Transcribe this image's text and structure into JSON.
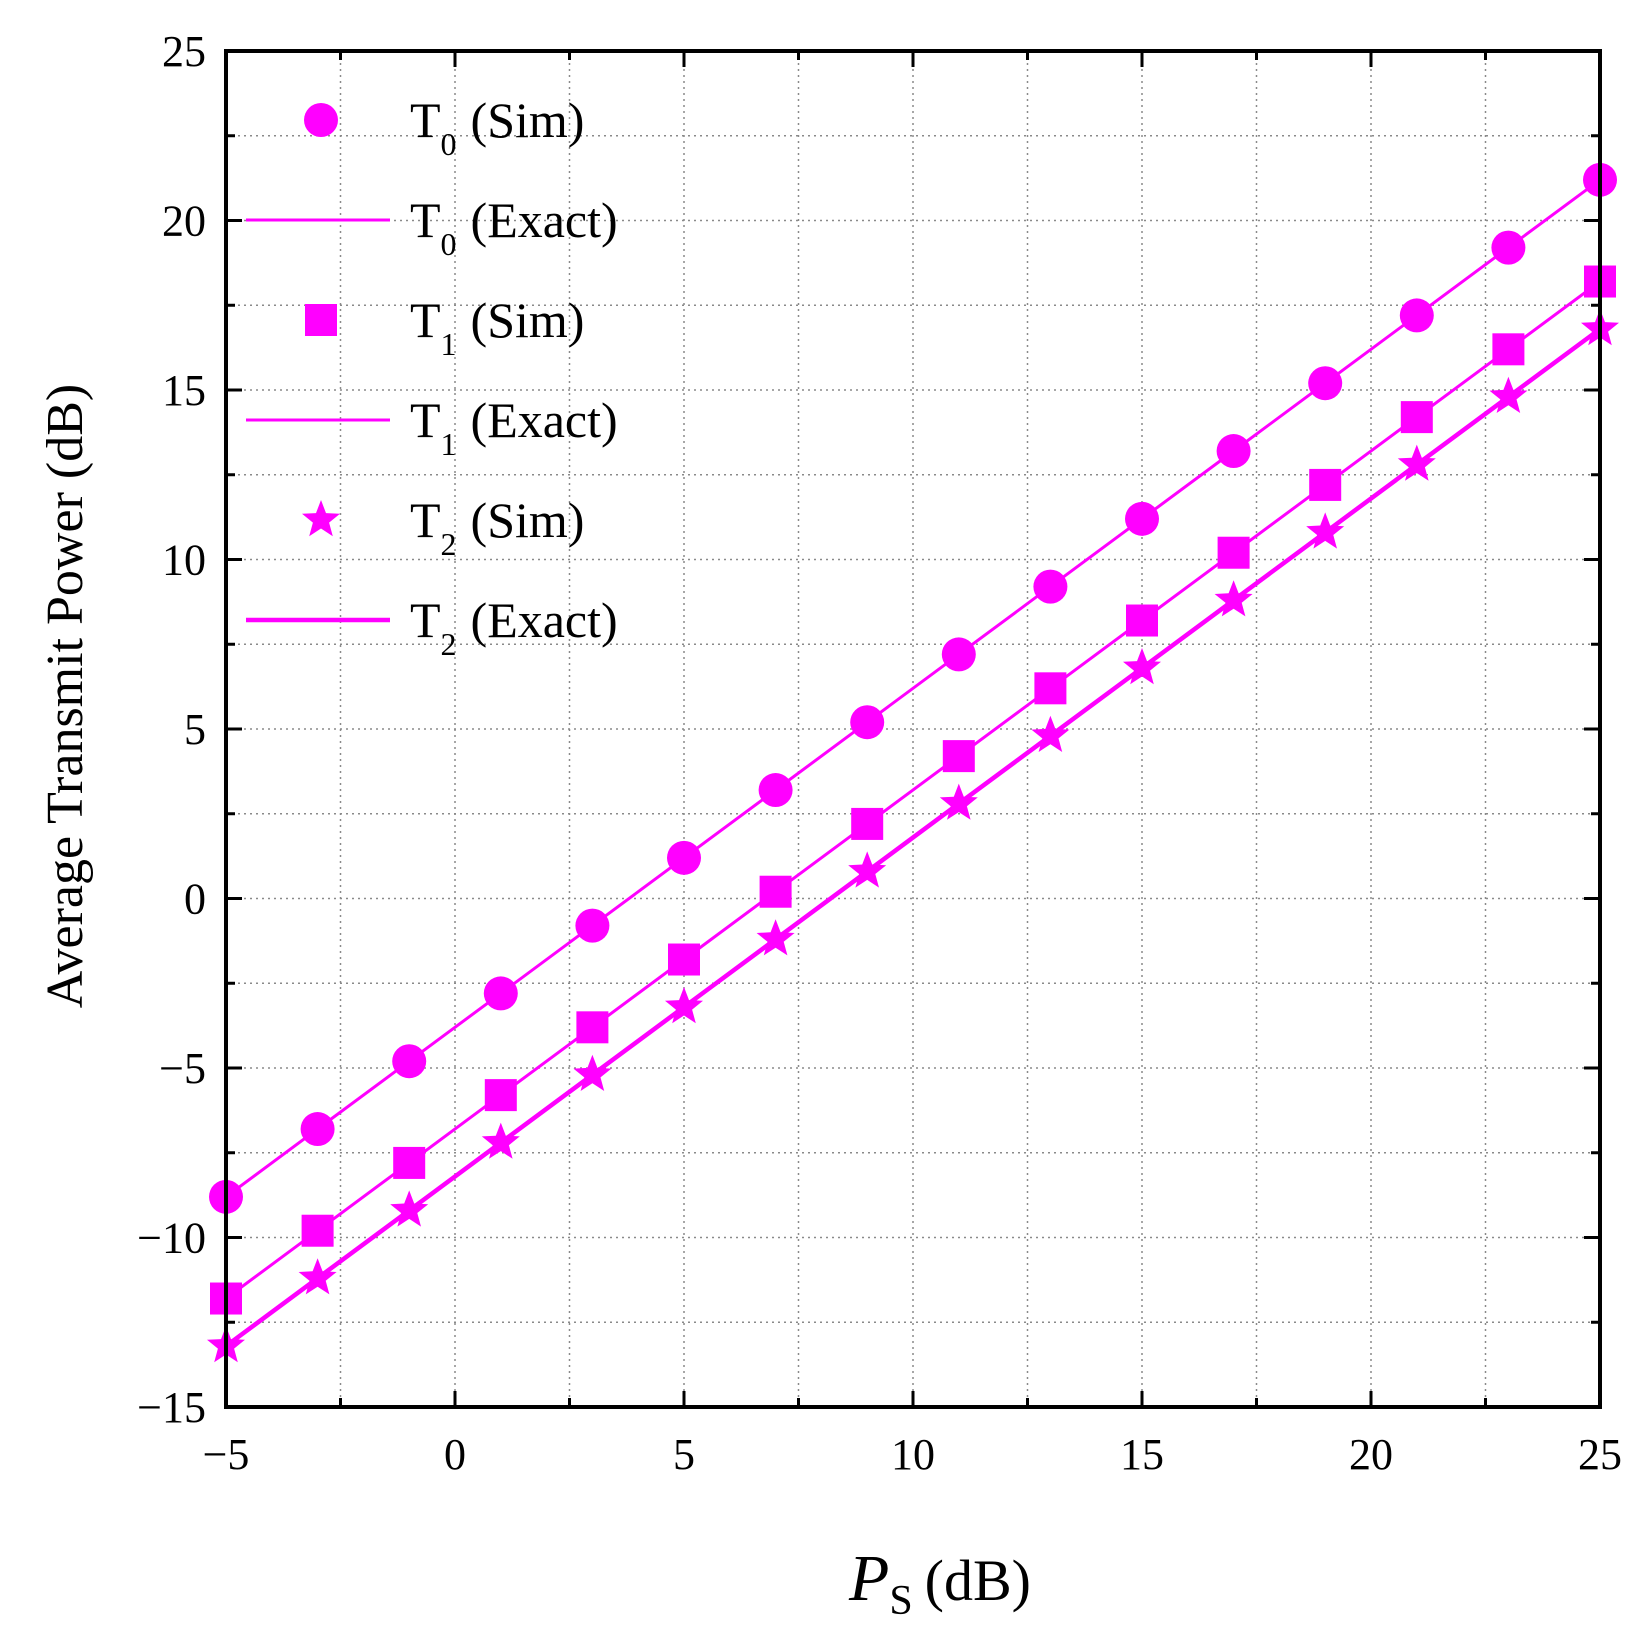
{
  "chart_data": {
    "type": "line",
    "title": "",
    "xlabel": {
      "main": "P",
      "sub": "S",
      "unit": "(dB)"
    },
    "ylabel": "Average Transmit Power (dB)",
    "xlim": [
      -5,
      25
    ],
    "ylim": [
      -15,
      25
    ],
    "xticks": [
      -5,
      0,
      5,
      10,
      15,
      20,
      25
    ],
    "yticks": [
      -15,
      -10,
      -5,
      0,
      5,
      10,
      15,
      20,
      25
    ],
    "xtick_labels": [
      "−5",
      "0",
      "5",
      "10",
      "15",
      "20",
      "25"
    ],
    "ytick_labels": [
      "−15",
      "−10",
      "−5",
      "0",
      "5",
      "10",
      "15",
      "20",
      "25"
    ],
    "grid": "dotted",
    "legend_position": "top-left",
    "color": "#ff00ff",
    "x": [
      -5,
      -3,
      -1,
      1,
      3,
      5,
      7,
      9,
      11,
      13,
      15,
      17,
      19,
      21,
      23,
      25
    ],
    "series": [
      {
        "name": "T0 (Sim)",
        "label": "T",
        "sub": "0",
        "suffix": "(Sim)",
        "kind": "markers",
        "marker": "circle",
        "values": [
          -8.8,
          -6.8,
          -4.8,
          -2.8,
          -0.8,
          1.2,
          3.2,
          5.2,
          7.2,
          9.2,
          11.2,
          13.2,
          15.2,
          17.2,
          19.2,
          21.2
        ]
      },
      {
        "name": "T0 (Exact)",
        "label": "T",
        "sub": "0",
        "suffix": "(Exact)",
        "kind": "line",
        "values": [
          -8.8,
          -6.8,
          -4.8,
          -2.8,
          -0.8,
          1.2,
          3.2,
          5.2,
          7.2,
          9.2,
          11.2,
          13.2,
          15.2,
          17.2,
          19.2,
          21.2
        ]
      },
      {
        "name": "T1 (Sim)",
        "label": "T",
        "sub": "1",
        "suffix": "(Sim)",
        "kind": "markers",
        "marker": "square",
        "values": [
          -11.8,
          -9.8,
          -7.8,
          -5.8,
          -3.8,
          -1.8,
          0.2,
          2.2,
          4.2,
          6.2,
          8.2,
          10.2,
          12.2,
          14.2,
          16.2,
          18.2
        ]
      },
      {
        "name": "T1 (Exact)",
        "label": "T",
        "sub": "1",
        "suffix": "(Exact)",
        "kind": "line",
        "values": [
          -11.8,
          -9.8,
          -7.8,
          -5.8,
          -3.8,
          -1.8,
          0.2,
          2.2,
          4.2,
          6.2,
          8.2,
          10.2,
          12.2,
          14.2,
          16.2,
          18.2
        ]
      },
      {
        "name": "T2 (Sim)",
        "label": "T",
        "sub": "2",
        "suffix": "(Sim)",
        "kind": "markers",
        "marker": "star",
        "values": [
          -13.2,
          -11.2,
          -9.2,
          -7.2,
          -5.2,
          -3.2,
          -1.2,
          0.8,
          2.8,
          4.8,
          6.8,
          8.8,
          10.8,
          12.8,
          14.8,
          16.8
        ]
      },
      {
        "name": "T2 (Exact)",
        "label": "T",
        "sub": "2",
        "suffix": "(Exact)",
        "kind": "line",
        "values": [
          -13.2,
          -11.2,
          -9.2,
          -7.2,
          -5.2,
          -3.2,
          -1.2,
          0.8,
          2.8,
          4.8,
          6.8,
          8.8,
          10.8,
          12.8,
          14.8,
          16.8
        ]
      }
    ]
  }
}
